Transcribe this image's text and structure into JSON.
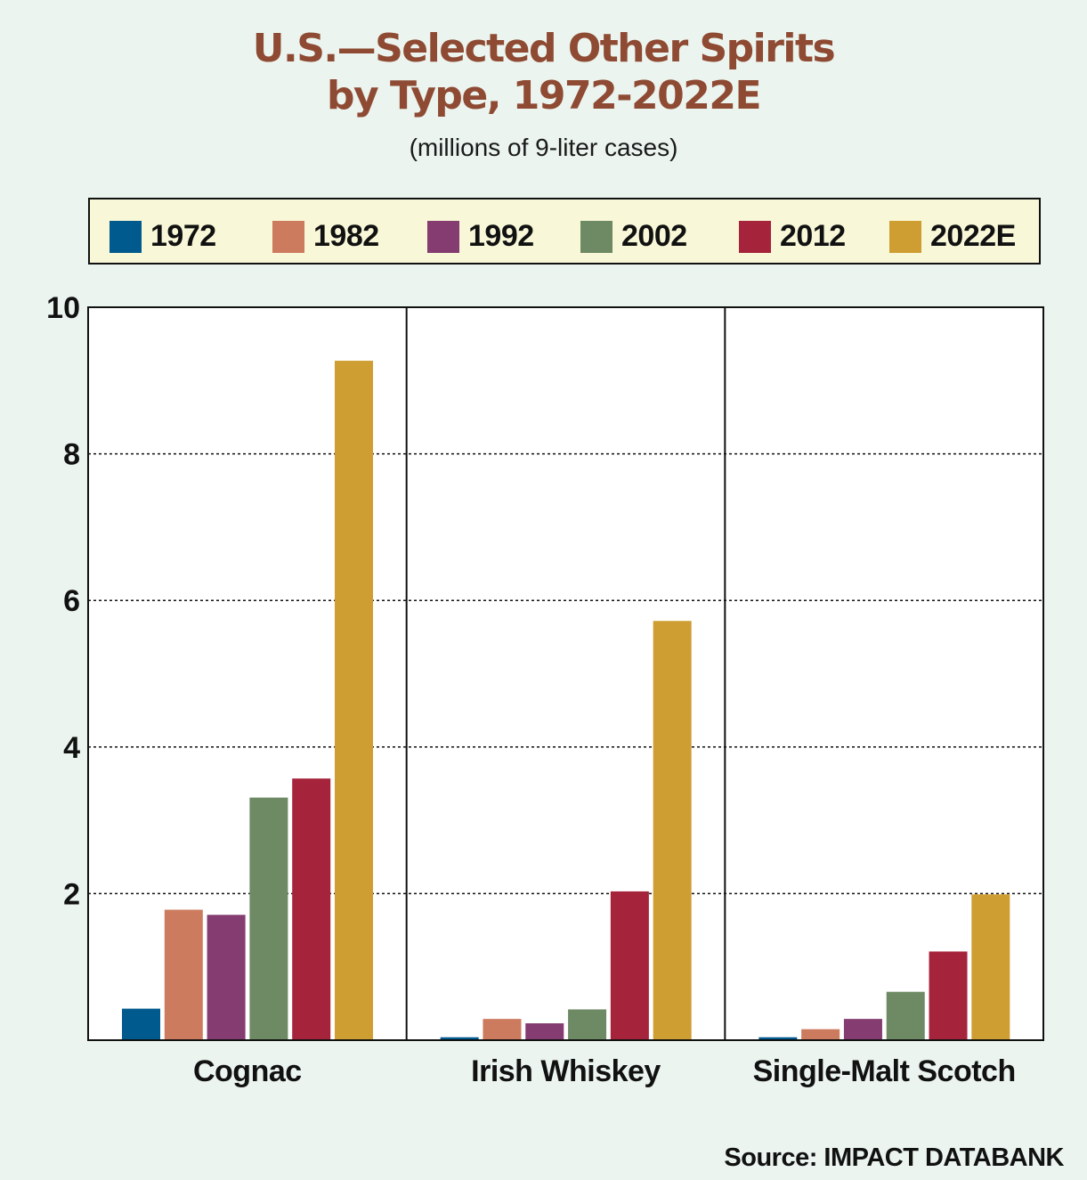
{
  "title_line1": "U.S.—Selected Other Spirits",
  "title_line2": "by Type, 1972-2022E",
  "subtitle": "(millions of 9-liter cases)",
  "source": "Source: IMPACT DATABANK",
  "colors": {
    "title": "#8e4a33",
    "background": "#ebf4ee",
    "legend_background": "#f8f7d8"
  },
  "chart_data": {
    "type": "bar",
    "categories": [
      "Cognac",
      "Irish Whiskey",
      "Single-Malt Scotch"
    ],
    "series": [
      {
        "name": "1972",
        "color": "#005a8d",
        "values": [
          0.43,
          0.04,
          0.04
        ]
      },
      {
        "name": "1982",
        "color": "#cd7b5e",
        "values": [
          1.78,
          0.29,
          0.15
        ]
      },
      {
        "name": "1992",
        "color": "#843c71",
        "values": [
          1.71,
          0.23,
          0.29
        ]
      },
      {
        "name": "2002",
        "color": "#6e8a64",
        "values": [
          3.31,
          0.42,
          0.66
        ]
      },
      {
        "name": "2012",
        "color": "#a6243b",
        "values": [
          3.57,
          2.03,
          1.21
        ]
      },
      {
        "name": "2022E",
        "color": "#cf9e32",
        "values": [
          9.27,
          5.72,
          1.99
        ]
      }
    ],
    "xlabel": "",
    "ylabel": "",
    "ylim": [
      0,
      10
    ],
    "yticks": [
      2,
      4,
      6,
      8,
      10
    ],
    "grid": "dotted horizontal",
    "legend": "top"
  }
}
